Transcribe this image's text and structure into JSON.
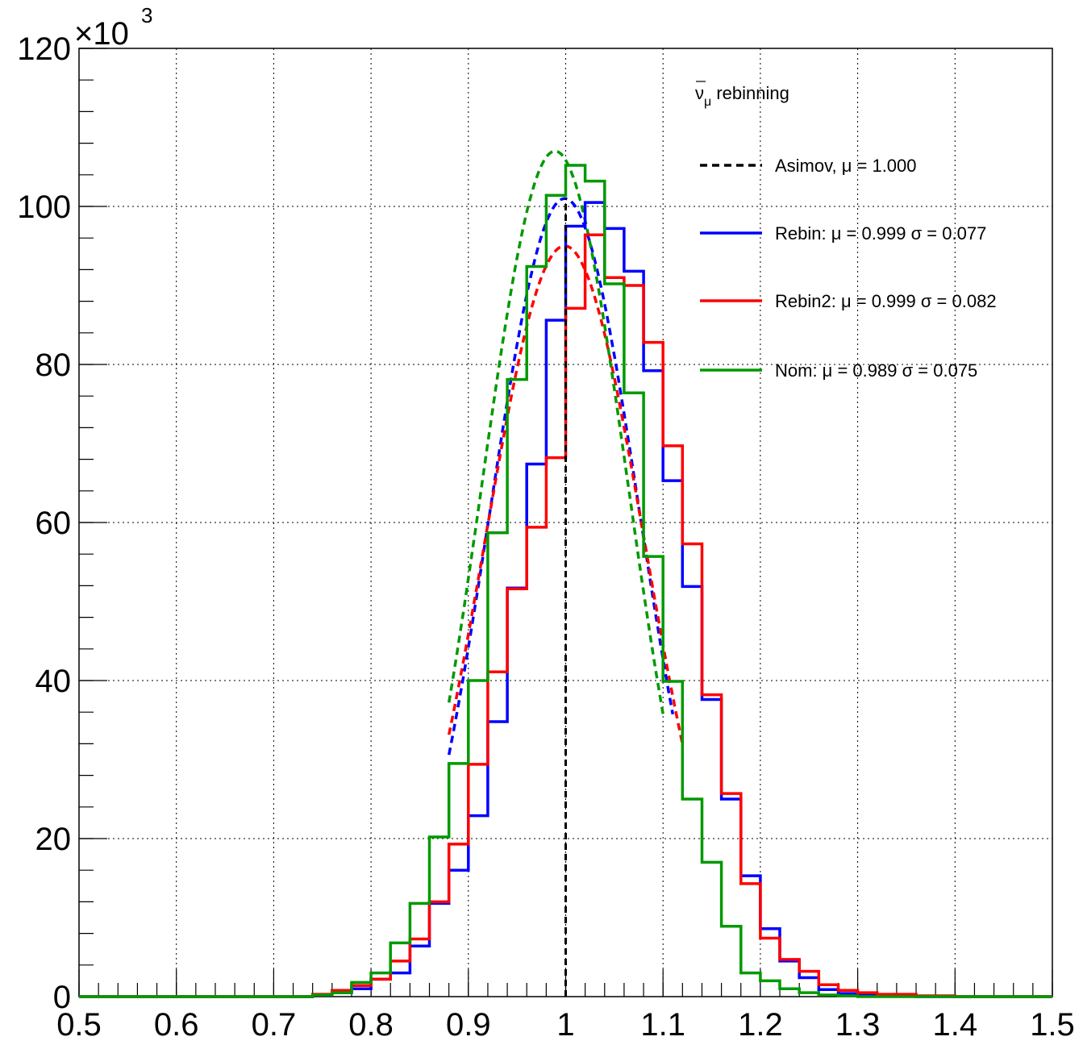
{
  "chart_data": {
    "type": "histogram",
    "title": "",
    "xlabel": "",
    "ylabel": "",
    "y_multiplier_label": "×10",
    "y_multiplier_exp": "3",
    "xlim": [
      0.5,
      1.5
    ],
    "ylim": [
      0,
      120
    ],
    "grid": true,
    "legend_position": "top-right",
    "x_ticks": [
      "0.5",
      "0.6",
      "0.7",
      "0.8",
      "0.9",
      "1",
      "1.1",
      "1.2",
      "1.3",
      "1.4",
      "1.5"
    ],
    "y_ticks": [
      "0",
      "20",
      "40",
      "60",
      "80",
      "100",
      "120"
    ],
    "legend": {
      "header_main": "ν",
      "header_sub": "μ",
      "header_rest": " rebinning",
      "entries": [
        {
          "label": "Asimov, μ = 1.000",
          "color": "#000000",
          "dashed": true
        },
        {
          "label": "Rebin: μ = 0.999 σ = 0.077",
          "color": "#0000ff",
          "dashed": false
        },
        {
          "label": "Rebin2: μ = 0.999 σ = 0.082",
          "color": "#ff0000",
          "dashed": false
        },
        {
          "label": "Nom: μ = 0.989 σ = 0.075",
          "color": "#009900",
          "dashed": false
        }
      ]
    },
    "asimov_mu": 1.0,
    "bin_edges_start": 0.5,
    "bin_width": 0.02,
    "series": [
      {
        "name": "Rebin",
        "color": "#0000ff",
        "values": [
          0,
          0,
          0,
          0,
          0,
          0,
          0,
          0,
          0,
          0,
          0,
          0,
          0.2,
          0.5,
          1.0,
          2.2,
          3.0,
          6.4,
          11.8,
          16.0,
          22.9,
          34.8,
          51.7,
          67.4,
          85.6,
          97.5,
          100.5,
          97.2,
          91.8,
          79.2,
          65.3,
          51.9,
          37.6,
          25.0,
          15.3,
          8.6,
          4.5,
          2.4,
          0.9,
          0.4,
          0.2,
          0.1,
          0.1,
          0,
          0,
          0,
          0,
          0,
          0,
          0
        ],
        "fit": {
          "mu": 0.999,
          "sigma": 0.077,
          "peak": 101,
          "range": [
            0.88,
            1.11
          ]
        }
      },
      {
        "name": "Rebin2",
        "color": "#ff0000",
        "values": [
          0,
          0,
          0,
          0,
          0,
          0,
          0,
          0,
          0,
          0,
          0,
          0,
          0.3,
          0.8,
          1.4,
          2.2,
          4.5,
          7.3,
          12.0,
          19.3,
          29.4,
          41.1,
          51.6,
          59.4,
          68.2,
          87.1,
          96.4,
          91.0,
          90.0,
          82.8,
          69.7,
          57.3,
          38.2,
          25.7,
          14.3,
          7.4,
          4.7,
          3.2,
          1.5,
          0.8,
          0.5,
          0.3,
          0.3,
          0.1,
          0.1,
          0,
          0,
          0,
          0,
          0
        ],
        "fit": {
          "mu": 0.999,
          "sigma": 0.082,
          "peak": 95,
          "range": [
            0.88,
            1.12
          ]
        }
      },
      {
        "name": "Nom",
        "color": "#009900",
        "values": [
          0,
          0,
          0,
          0,
          0,
          0,
          0,
          0,
          0,
          0,
          0,
          0,
          0.2,
          0.5,
          1.8,
          3.0,
          6.8,
          11.8,
          20.2,
          29.5,
          40.0,
          58.7,
          78.1,
          92.4,
          101.4,
          105.2,
          103.2,
          90.2,
          76.4,
          55.7,
          39.9,
          25.0,
          17.0,
          8.9,
          3.0,
          2.0,
          1.0,
          0.5,
          0.2,
          0.1,
          0,
          0,
          0,
          0,
          0,
          0,
          0,
          0,
          0,
          0
        ],
        "fit": {
          "mu": 0.989,
          "sigma": 0.075,
          "peak": 107,
          "range": [
            0.88,
            1.1
          ]
        }
      }
    ]
  }
}
